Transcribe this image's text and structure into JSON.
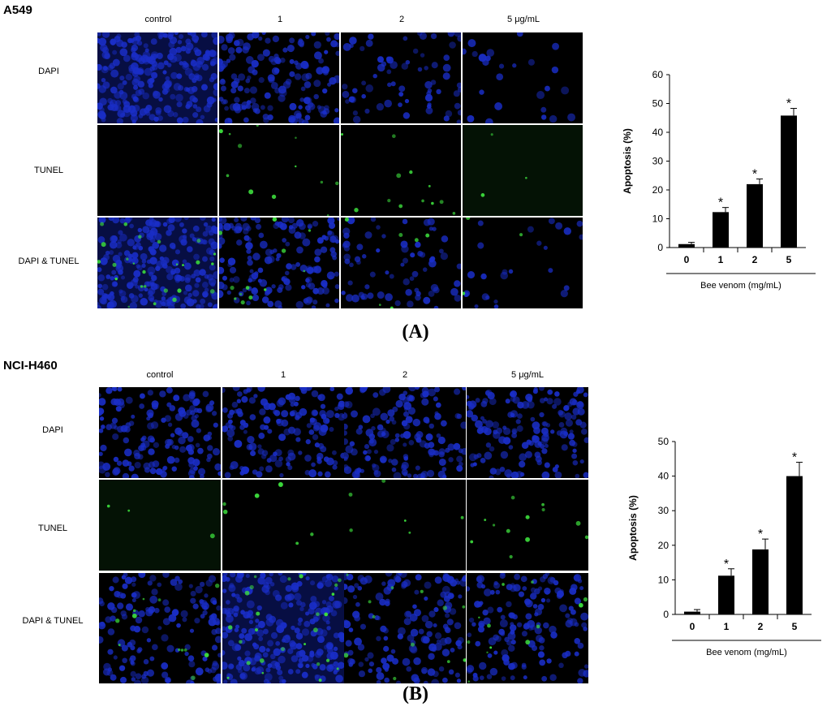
{
  "figure": {
    "panels": [
      {
        "cell_line": "A549",
        "columns": [
          "control",
          "1",
          "2",
          "5 μg/mL"
        ],
        "rows": [
          "DAPI",
          "TUNEL",
          "DAPI & TUNEL"
        ],
        "label": "(A)"
      },
      {
        "cell_line": "NCI-H460",
        "columns": [
          "control",
          "1",
          "2",
          "5 μg/mL"
        ],
        "rows": [
          "DAPI",
          "TUNEL",
          "DAPI & TUNEL"
        ],
        "label": "(B)"
      }
    ]
  },
  "colors": {
    "dapi_blue": "#1a2ec8",
    "tunel_green": "#3cdc3c",
    "background": "#000000",
    "bar": "#000000"
  },
  "chart_data": [
    {
      "type": "bar",
      "categories": [
        "0",
        "1",
        "2",
        "5"
      ],
      "values": [
        1.2,
        12.3,
        22,
        45.8
      ],
      "errors": [
        0.6,
        1.6,
        1.8,
        2.5
      ],
      "significance": [
        "",
        "*",
        "*",
        "*"
      ],
      "title": "",
      "xlabel": "Bee venom (mg/mL)",
      "ylabel": "Apoptosis (%)",
      "ylim": [
        0,
        60
      ],
      "yticks": [
        0,
        10,
        20,
        30,
        40,
        50,
        60
      ],
      "grid": false
    },
    {
      "type": "bar",
      "categories": [
        "0",
        "1",
        "2",
        "5"
      ],
      "values": [
        0.8,
        11.2,
        18.8,
        40
      ],
      "errors": [
        0.6,
        2,
        3,
        4
      ],
      "significance": [
        "",
        "*",
        "*",
        "*"
      ],
      "title": "",
      "xlabel": "Bee venom (mg/mL)",
      "ylabel": "Apoptosis (%)",
      "ylim": [
        0,
        50
      ],
      "yticks": [
        0,
        10,
        20,
        30,
        40,
        50
      ],
      "grid": false
    }
  ]
}
